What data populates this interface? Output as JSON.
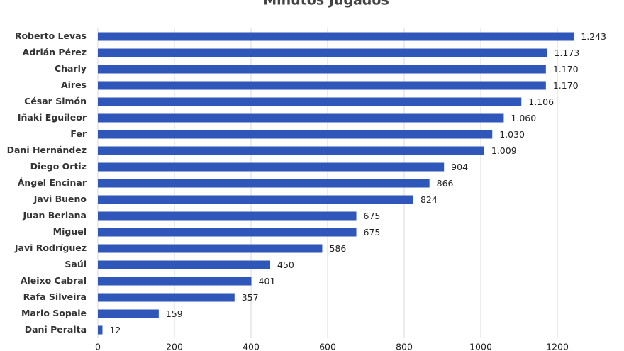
{
  "chart_data": {
    "type": "hbar",
    "title": "Minutos Jugados",
    "categories": [
      "Roberto Levas",
      "Adrián Pérez",
      "Charly",
      "Aires",
      "César Simón",
      "Iñaki Eguileor",
      "Fer",
      "Dani Hernández",
      "Diego Ortiz",
      "Ángel Encinar",
      "Javi Bueno",
      "Juan Berlana",
      "Miguel",
      "Javi Rodríguez",
      "Saúl",
      "Aleixo Cabral",
      "Rafa Silveira",
      "Mario Sopale",
      "Dani Peralta"
    ],
    "values": [
      1243,
      1173,
      1170,
      1170,
      1106,
      1060,
      1030,
      1009,
      904,
      866,
      824,
      675,
      675,
      586,
      450,
      401,
      357,
      159,
      12
    ],
    "value_labels": [
      "1.243",
      "1.173",
      "1.170",
      "1.170",
      "1.106",
      "1.060",
      "1.030",
      "1.009",
      "904",
      "866",
      "824",
      "675",
      "675",
      "586",
      "450",
      "401",
      "357",
      "159",
      "12"
    ],
    "color": "#2f56b9",
    "xlim": [
      0,
      1374
    ],
    "xticks": [
      0,
      200,
      400,
      600,
      800,
      1000,
      1200
    ],
    "grid": true
  }
}
